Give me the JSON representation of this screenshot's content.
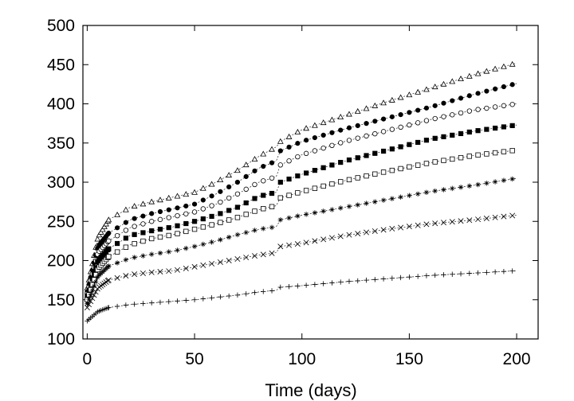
{
  "chart_data": {
    "type": "scatter",
    "title": "",
    "xlabel": "Time (days)",
    "ylabel": "",
    "xlim": [
      -2,
      210
    ],
    "ylim": [
      100,
      500
    ],
    "xticks": [
      0,
      50,
      100,
      150,
      200
    ],
    "yticks": [
      100,
      150,
      200,
      250,
      300,
      350,
      400,
      450,
      500
    ],
    "grid": false,
    "legend": "none",
    "series": [
      {
        "marker": "open-triangle",
        "x": [
          0,
          5,
          10,
          20,
          30,
          40,
          50,
          60,
          70,
          80,
          88,
          90,
          100,
          120,
          140,
          160,
          180,
          200
        ],
        "values": [
          165,
          230,
          252,
          268,
          275,
          281,
          287,
          300,
          315,
          333,
          345,
          352,
          367,
          385,
          403,
          420,
          437,
          452
        ]
      },
      {
        "marker": "filled-circle",
        "x": [
          0,
          5,
          10,
          20,
          30,
          40,
          50,
          60,
          70,
          80,
          88,
          90,
          100,
          120,
          140,
          160,
          180,
          200
        ],
        "values": [
          160,
          218,
          235,
          252,
          260,
          266,
          272,
          285,
          300,
          318,
          327,
          340,
          352,
          368,
          382,
          396,
          412,
          426
        ]
      },
      {
        "marker": "open-circle",
        "x": [
          0,
          5,
          10,
          20,
          30,
          40,
          50,
          60,
          70,
          80,
          88,
          90,
          100,
          120,
          140,
          160,
          180,
          200
        ],
        "values": [
          158,
          210,
          225,
          242,
          250,
          256,
          262,
          272,
          285,
          300,
          307,
          322,
          335,
          352,
          366,
          380,
          392,
          400
        ]
      },
      {
        "marker": "filled-square",
        "x": [
          0,
          5,
          10,
          20,
          30,
          40,
          50,
          60,
          70,
          80,
          88,
          90,
          100,
          120,
          140,
          160,
          180,
          200
        ],
        "values": [
          155,
          200,
          215,
          232,
          238,
          243,
          250,
          258,
          268,
          282,
          287,
          300,
          310,
          327,
          341,
          355,
          365,
          373
        ]
      },
      {
        "marker": "open-square",
        "x": [
          0,
          5,
          10,
          20,
          30,
          40,
          50,
          60,
          70,
          80,
          88,
          90,
          100,
          120,
          140,
          160,
          180,
          200
        ],
        "values": [
          150,
          190,
          205,
          220,
          228,
          233,
          240,
          247,
          255,
          265,
          270,
          280,
          288,
          302,
          314,
          325,
          334,
          341
        ]
      },
      {
        "marker": "asterisk",
        "x": [
          0,
          5,
          10,
          20,
          30,
          40,
          50,
          60,
          70,
          80,
          88,
          90,
          100,
          120,
          140,
          160,
          180,
          200
        ],
        "values": [
          145,
          180,
          193,
          203,
          208,
          212,
          218,
          225,
          233,
          240,
          243,
          252,
          258,
          268,
          278,
          288,
          296,
          305
        ]
      },
      {
        "marker": "cross",
        "x": [
          0,
          5,
          10,
          20,
          30,
          40,
          50,
          60,
          70,
          80,
          88,
          90,
          100,
          120,
          140,
          160,
          180,
          200
        ],
        "values": [
          140,
          165,
          175,
          182,
          185,
          187,
          192,
          197,
          202,
          207,
          210,
          218,
          222,
          232,
          240,
          247,
          252,
          258
        ]
      },
      {
        "marker": "plus",
        "x": [
          0,
          5,
          10,
          20,
          30,
          40,
          50,
          60,
          70,
          80,
          88,
          90,
          100,
          120,
          140,
          160,
          180,
          200
        ],
        "values": [
          123,
          135,
          140,
          144,
          146,
          148,
          150,
          153,
          156,
          160,
          162,
          166,
          168,
          173,
          177,
          181,
          184,
          187
        ]
      }
    ]
  }
}
